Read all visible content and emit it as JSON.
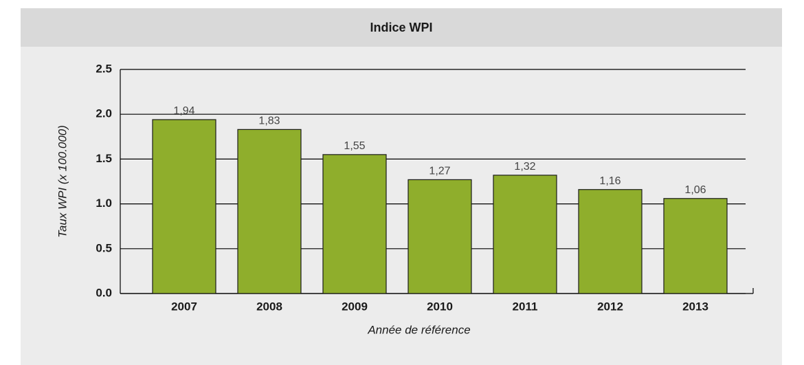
{
  "chart_data": {
    "type": "bar",
    "title": "Indice WPI",
    "x_label": "Année de référence",
    "y_label": "Taux WPI (x 100.000)",
    "categories": [
      "2007",
      "2008",
      "2009",
      "2010",
      "2011",
      "2012",
      "2013"
    ],
    "values": [
      1.94,
      1.83,
      1.55,
      1.27,
      1.32,
      1.16,
      1.06
    ],
    "value_labels": [
      "1,94",
      "1,83",
      "1,55",
      "1,27",
      "1,32",
      "1,16",
      "1,06"
    ],
    "color": "#8fae2c",
    "ylim": [
      0,
      2.5
    ],
    "yticks": [
      {
        "value": 0,
        "label": "0.0"
      },
      0.5,
      {
        "value": 1,
        "label": "1.0"
      },
      1.5,
      {
        "value": 2,
        "label": "2.0"
      },
      2.5
    ],
    "grid": true
  }
}
